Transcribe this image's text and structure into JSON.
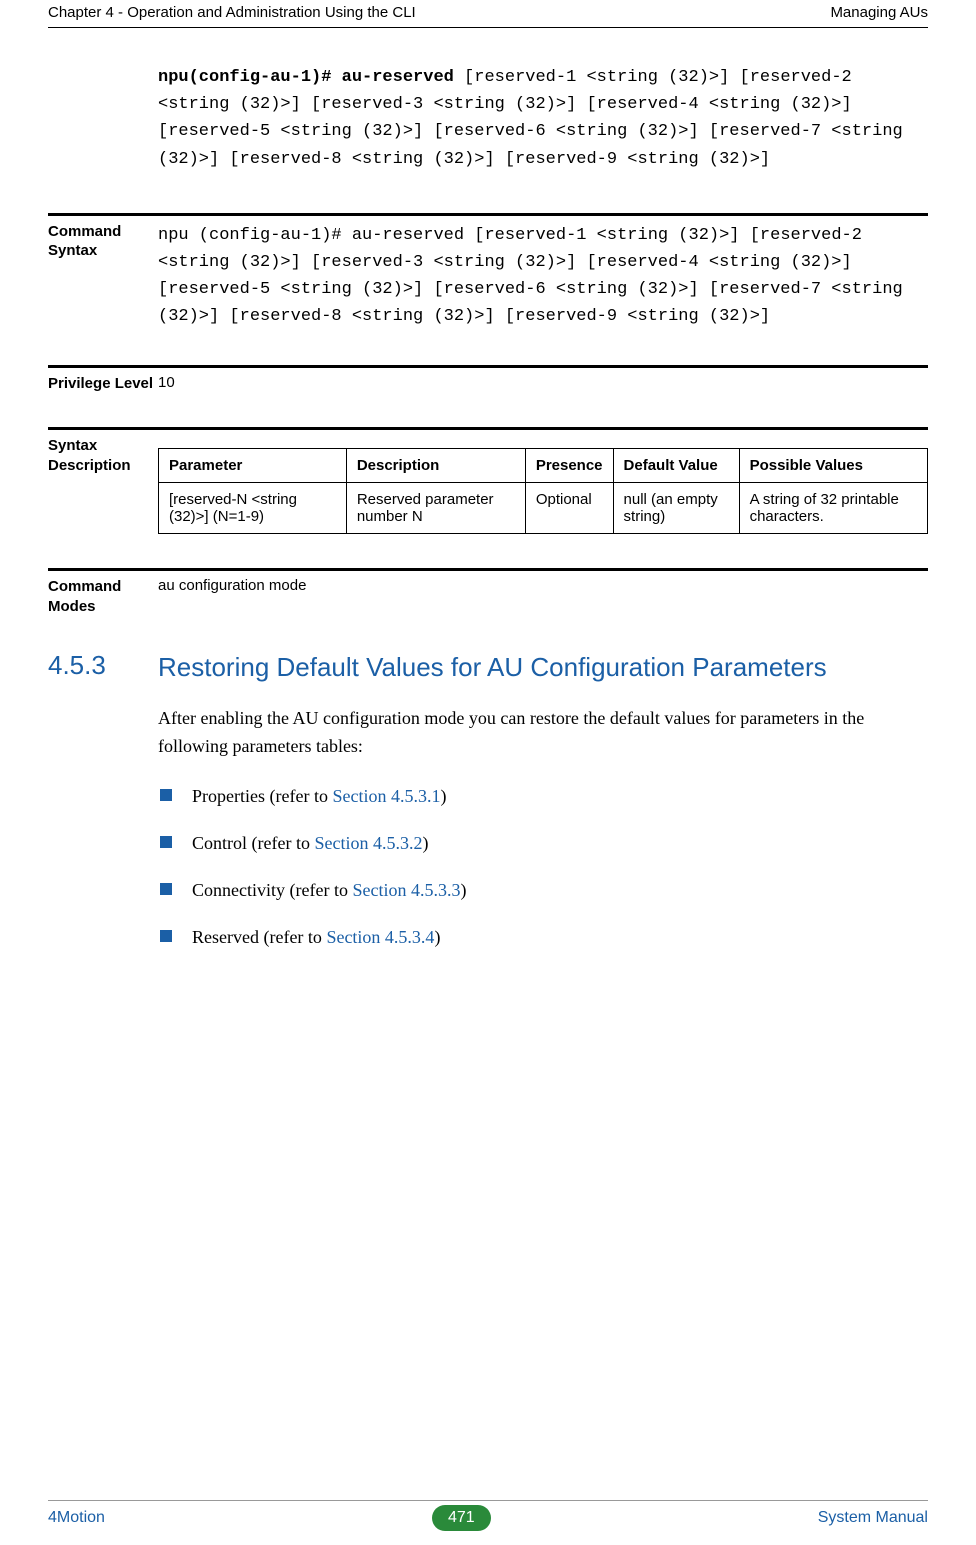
{
  "header": {
    "left": "Chapter 4 - Operation and Administration Using the CLI",
    "right": "Managing AUs"
  },
  "intro_code": {
    "bold": "npu(config-au-1)# au-reserved",
    "rest": " [reserved-1 <string (32)>] [reserved-2 <string (32)>] [reserved-3 <string (32)>] [reserved-4 <string (32)>] [reserved-5 <string (32)>] [reserved-6 <string (32)>] [reserved-7 <string (32)>] [reserved-8 <string (32)>] [reserved-9 <string (32)>]"
  },
  "command_syntax": {
    "label": "Command Syntax",
    "bold": "npu (config-au-1)# au-reserved",
    "rest": " [reserved-1 <string (32)>] [reserved-2 <string (32)>] [reserved-3 <string (32)>] [reserved-4 <string (32)>] [reserved-5 <string (32)>] [reserved-6 <string (32)>] [reserved-7 <string (32)>] [reserved-8 <string (32)>] [reserved-9 <string (32)>]"
  },
  "privilege": {
    "label": "Privilege Level",
    "value": "10"
  },
  "syntax_desc": {
    "label": "Syntax Description",
    "columns": [
      "Parameter",
      "Description",
      "Presence",
      "Default Value",
      "Possible Values"
    ],
    "row": {
      "param": "[reserved-N <string (32)>] (N=1-9)",
      "desc": "Reserved parameter number N",
      "presence": "Optional",
      "default": "null (an empty string)",
      "possible": "A string of 32 printable characters."
    }
  },
  "command_modes": {
    "label": "Command Modes",
    "value": "au configuration mode"
  },
  "heading": {
    "num": "4.5.3",
    "title": "Restoring Default Values for AU Configuration Parameters"
  },
  "para": "After enabling the AU configuration mode you can restore the default values for parameters in the following parameters tables:",
  "bullets": [
    {
      "text": "Properties (refer to ",
      "link": "Section 4.5.3.1",
      "tail": ")"
    },
    {
      "text": "Control (refer to ",
      "link": "Section 4.5.3.2",
      "tail": ")"
    },
    {
      "text": "Connectivity (refer to ",
      "link": "Section 4.5.3.3",
      "tail": ")"
    },
    {
      "text": "Reserved (refer to ",
      "link": "Section 4.5.3.4",
      "tail": ")"
    }
  ],
  "footer": {
    "left": "4Motion",
    "page": "471",
    "right": "System Manual"
  },
  "colors": {
    "link": "#1b5fa6",
    "heading": "#1b5fa6",
    "bullet": "#1b5fa6",
    "page_pill_bg": "#2a8a3a"
  }
}
